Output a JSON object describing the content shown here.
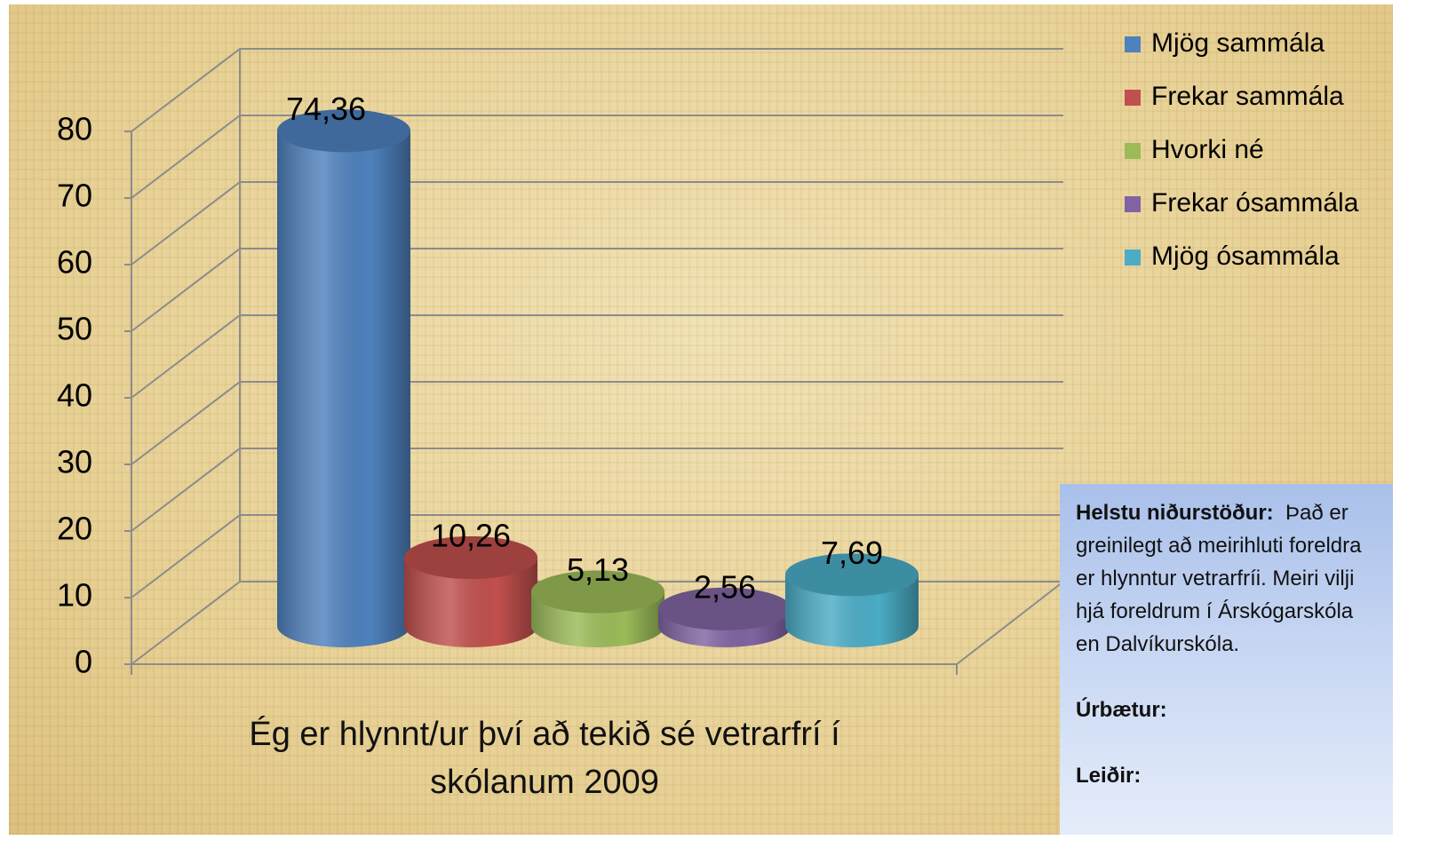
{
  "chart_data": {
    "type": "bar",
    "categories": [
      "Ég er hlynnt/ur því að tekið sé vetrarfrí í skólanum 2009"
    ],
    "series": [
      {
        "name": "Mjög sammála",
        "color": "#4f81bd",
        "values": [
          74.36
        ],
        "value_labels": [
          "74,36"
        ]
      },
      {
        "name": "Frekar sammála",
        "color": "#c0504d",
        "values": [
          10.26
        ],
        "value_labels": [
          "10,26"
        ]
      },
      {
        "name": "Hvorki né",
        "color": "#9bbb59",
        "values": [
          5.13
        ],
        "value_labels": [
          "5,13"
        ]
      },
      {
        "name": "Frekar ósammála",
        "color": "#8064a2",
        "values": [
          2.56
        ],
        "value_labels": [
          "2,56"
        ]
      },
      {
        "name": "Mjög ósammála",
        "color": "#4bacc6",
        "values": [
          7.69
        ],
        "value_labels": [
          "7,69"
        ]
      }
    ],
    "ylim": [
      0,
      80
    ],
    "yticks": [
      0,
      10,
      20,
      30,
      40,
      50,
      60,
      70,
      80
    ],
    "grid": true,
    "legend": "right"
  },
  "text_box": {
    "heading": "Helstu niðurstöður:",
    "body": "Það er greinilegt að meirihluti foreldra er hlynntur vetrarfríi. Meiri vilji hjá foreldrum í Árskógarskóla en Dalvíkurskóla.",
    "items": [
      "Úrbætur:",
      "Leiðir:"
    ]
  }
}
